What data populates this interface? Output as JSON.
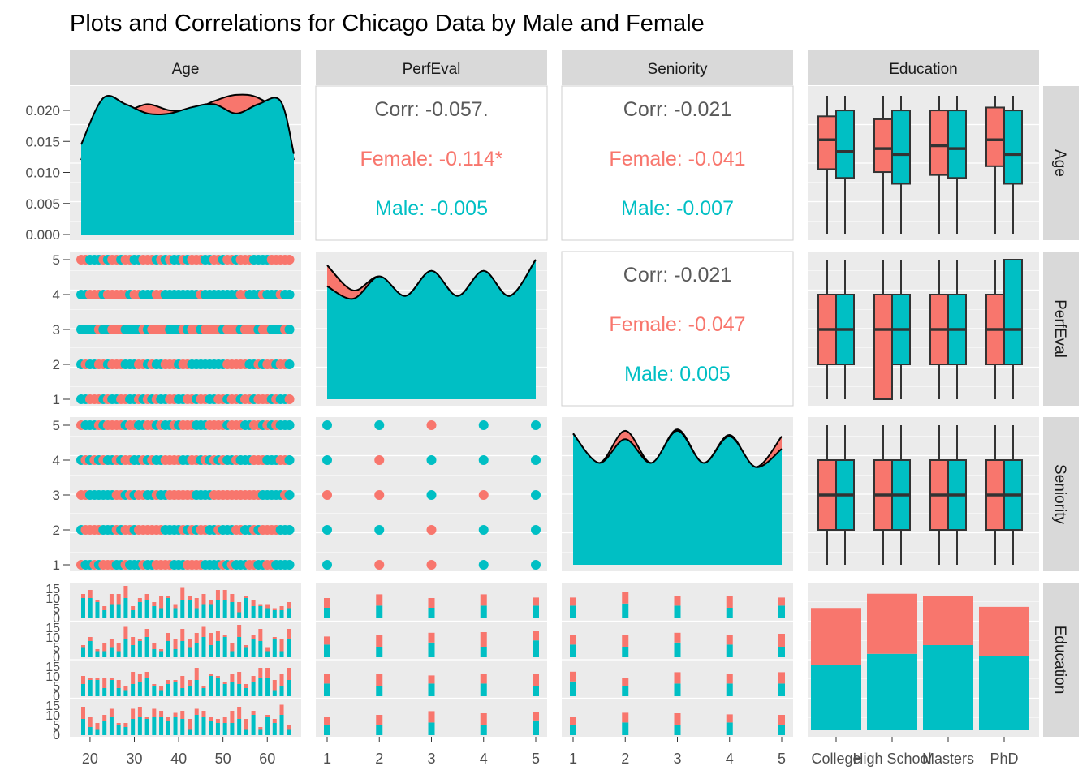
{
  "title": "Plots and Correlations for Chicago Data by Male and Female",
  "variables": [
    "Age",
    "PerfEval",
    "Seniority",
    "Education"
  ],
  "colors": {
    "female": "#F8766D",
    "male": "#00BFC4",
    "panel_bg": "#EBEBEB",
    "strip_bg": "#D9D9D9",
    "text_gray": "#595959"
  },
  "axis_ticks": {
    "age_density_y": [
      "0.000",
      "0.005",
      "0.010",
      "0.015",
      "0.020"
    ],
    "ordinal_y": [
      "1",
      "2",
      "3",
      "4",
      "5"
    ],
    "age_x": [
      "20",
      "30",
      "40",
      "50",
      "60"
    ],
    "ordinal_x": [
      "1",
      "2",
      "3",
      "4",
      "5"
    ],
    "education_x": [
      "College",
      "High School",
      "Masters",
      "PhD"
    ],
    "hist_y": [
      "0",
      "5",
      "10",
      "15"
    ]
  },
  "chart_data": {
    "type": "scatter",
    "title": "Plots and Correlations for Chicago Data by Male and Female",
    "groups": [
      "Female",
      "Male"
    ],
    "correlations": [
      {
        "pair": [
          "Age",
          "PerfEval"
        ],
        "corr": "Corr: -0.057.",
        "female": "Female: -0.114*",
        "male": "Male: -0.005"
      },
      {
        "pair": [
          "Age",
          "Seniority"
        ],
        "corr": "Corr: -0.021",
        "female": "Female: -0.041",
        "male": "Male: -0.007"
      },
      {
        "pair": [
          "PerfEval",
          "Seniority"
        ],
        "corr": "Corr: -0.021",
        "female": "Female: -0.047",
        "male": "Male: 0.005"
      }
    ],
    "education_counts": {
      "categories": [
        "College",
        "High School",
        "Masters",
        "PhD"
      ],
      "female": [
        52,
        55,
        45,
        45
      ],
      "male": [
        60,
        70,
        78,
        68
      ]
    },
    "age_density": {
      "x": [
        18,
        23,
        28,
        33,
        38,
        43,
        48,
        53,
        58,
        63,
        66
      ],
      "female": [
        0.012,
        0.0215,
        0.02,
        0.021,
        0.02,
        0.02,
        0.0215,
        0.0225,
        0.022,
        0.019,
        0.012
      ],
      "male": [
        0.0145,
        0.022,
        0.021,
        0.0195,
        0.0195,
        0.0205,
        0.021,
        0.0195,
        0.021,
        0.0215,
        0.013
      ]
    },
    "perfeval_density": {
      "x": [
        1,
        1.5,
        2,
        2.5,
        3,
        3.5,
        4,
        4.5,
        5
      ],
      "female": [
        4.8,
        3.9,
        4.4,
        3.7,
        4.6,
        3.7,
        4.6,
        3.7,
        5.0
      ],
      "male": [
        4.05,
        3.6,
        4.4,
        3.7,
        4.6,
        3.7,
        4.6,
        3.7,
        5.0
      ]
    },
    "seniority_density": {
      "x": [
        1,
        1.5,
        2,
        2.5,
        3,
        3.5,
        4,
        4.5,
        5
      ],
      "female": [
        4.7,
        3.65,
        4.8,
        3.65,
        4.85,
        3.65,
        4.65,
        3.5,
        4.6
      ],
      "male": [
        4.7,
        3.65,
        4.5,
        3.65,
        4.8,
        3.65,
        4.6,
        3.5,
        4.15
      ]
    },
    "education_boxplots": {
      "age": {
        "female": [
          [
            18,
            40,
            50,
            58,
            65
          ],
          [
            18,
            39,
            47,
            57,
            65
          ],
          [
            18,
            38,
            48,
            60,
            65
          ],
          [
            18,
            41,
            50,
            61,
            65
          ]
        ],
        "male": [
          [
            18,
            37,
            46,
            60,
            65
          ],
          [
            18,
            35,
            45,
            60,
            65
          ],
          [
            18,
            37,
            47,
            60,
            65
          ],
          [
            18,
            35,
            45,
            60,
            65
          ]
        ]
      },
      "perfeval": {
        "female": [
          [
            1,
            2,
            3,
            4,
            5
          ],
          [
            1,
            1,
            3,
            4,
            5
          ],
          [
            1,
            2,
            3,
            4,
            5
          ],
          [
            1,
            2,
            3,
            4,
            5
          ]
        ],
        "male": [
          [
            1,
            2,
            3,
            4,
            5
          ],
          [
            1,
            2,
            3,
            4,
            5
          ],
          [
            1,
            2,
            3,
            4,
            5
          ],
          [
            1,
            2,
            3,
            5,
            5
          ]
        ]
      },
      "seniority": {
        "female": [
          [
            1,
            2,
            3,
            4,
            5
          ],
          [
            1,
            2,
            3,
            4,
            5
          ],
          [
            1,
            2,
            3,
            4,
            5
          ],
          [
            1,
            2,
            3,
            4,
            5
          ]
        ],
        "male": [
          [
            1,
            2,
            3,
            4,
            5
          ],
          [
            1,
            2,
            3,
            4,
            5
          ],
          [
            1,
            2,
            3,
            4,
            5
          ],
          [
            1,
            2,
            3,
            4,
            5
          ]
        ]
      }
    },
    "perfeval_by_education": {
      "female": [
        [
          6,
          7,
          6,
          7,
          5
        ],
        [
          5,
          7,
          6,
          9,
          6
        ],
        [
          6,
          7,
          5,
          6,
          7
        ],
        [
          5,
          6,
          7,
          7,
          5
        ]
      ],
      "male": [
        [
          5,
          6,
          5,
          6,
          6
        ],
        [
          6,
          5,
          7,
          5,
          8
        ],
        [
          6,
          5,
          6,
          6,
          5
        ],
        [
          5,
          5,
          6,
          5,
          7
        ]
      ]
    },
    "seniority_by_education": {
      "female": [
        [
          5,
          7,
          6,
          7,
          5
        ],
        [
          6,
          7,
          6,
          6,
          8
        ],
        [
          6,
          5,
          7,
          6,
          7
        ],
        [
          5,
          6,
          7,
          5,
          6
        ]
      ],
      "male": [
        [
          6,
          7,
          6,
          5,
          6
        ],
        [
          6,
          5,
          7,
          6,
          5
        ],
        [
          7,
          5,
          6,
          6,
          6
        ],
        [
          5,
          6,
          5,
          6,
          5
        ]
      ]
    }
  }
}
